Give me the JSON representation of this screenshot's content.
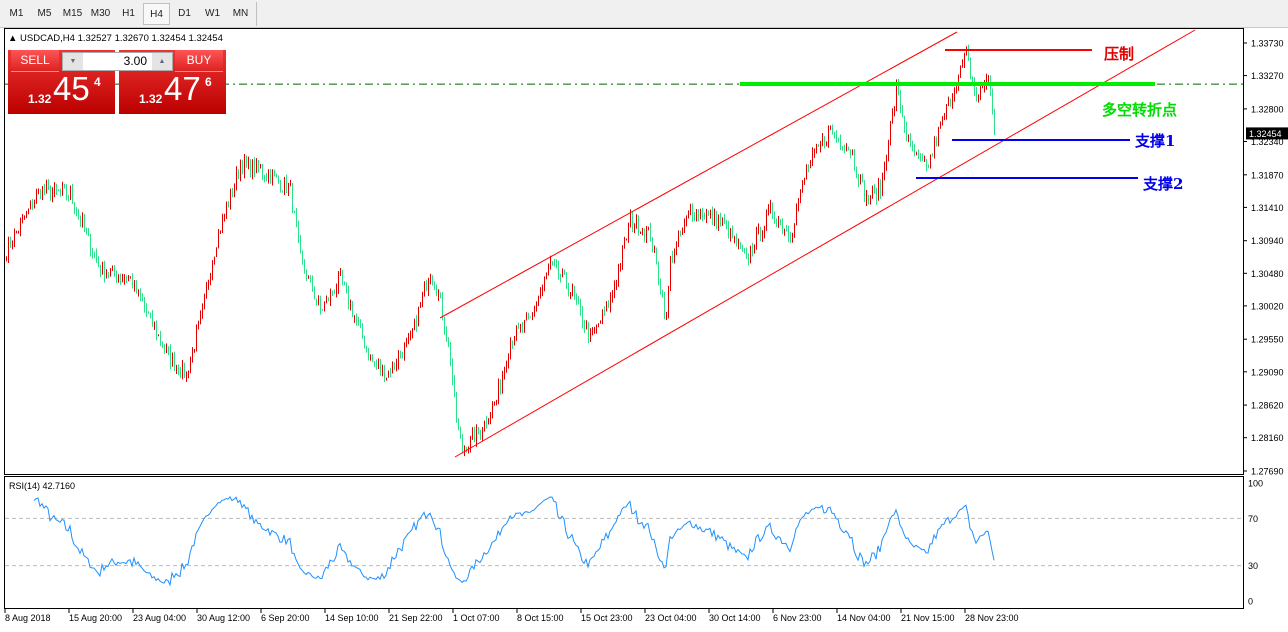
{
  "toolbar": {
    "timeframes": [
      "M1",
      "M5",
      "M15",
      "M30",
      "H1",
      "H4",
      "D1",
      "W1",
      "MN"
    ],
    "selected": "H4"
  },
  "chart": {
    "header": "USDCAD,H4  1.32527 1.32670 1.32454 1.32454",
    "current_price": "1.32454",
    "colors": {
      "bull": "#e00000",
      "bear": "#2ee08a",
      "channel": "#ff0000",
      "pivot": "#00ee00",
      "support": "#0000ee",
      "bid_line": "#006400",
      "rsi": "#1e90ff"
    }
  },
  "trade_panel": {
    "sell_label": "SELL",
    "buy_label": "BUY",
    "quantity": "3.00",
    "sell_prefix": "1.32",
    "sell_big": "45",
    "sell_sup": "4",
    "buy_prefix": "1.32",
    "buy_big": "47",
    "buy_sup": "6"
  },
  "annotations": {
    "resistance": "压制",
    "pivot": "多空转折点",
    "support1": "支撑1",
    "support2": "支撑2"
  },
  "price_axis": [
    "1.33730",
    "1.33270",
    "1.32800",
    "1.32340",
    "1.31870",
    "1.31410",
    "1.30940",
    "1.30480",
    "1.30020",
    "1.29550",
    "1.29090",
    "1.28620",
    "1.28160",
    "1.27690"
  ],
  "time_axis": [
    "8 Aug 2018",
    "15 Aug 20:00",
    "23 Aug 04:00",
    "30 Aug 12:00",
    "6 Sep 20:00",
    "14 Sep 10:00",
    "21 Sep 22:00",
    "1 Oct 07:00",
    "8 Oct 15:00",
    "15 Oct 23:00",
    "23 Oct 04:00",
    "30 Oct 14:00",
    "6 Nov 23:00",
    "14 Nov 04:00",
    "21 Nov 15:00",
    "28 Nov 23:00"
  ],
  "rsi": {
    "label": "RSI(14) 42.7160",
    "axis": [
      "100",
      "70",
      "30",
      "0"
    ],
    "levels": [
      70,
      30
    ]
  },
  "chart_data": {
    "type": "bar",
    "symbol": "USDCAD",
    "timeframe": "H4",
    "ylim": [
      1.2769,
      1.3373
    ],
    "approx_close_path": [
      [
        0,
        1.3081
      ],
      [
        17,
        1.3166
      ],
      [
        32,
        1.3159
      ],
      [
        47,
        1.3053
      ],
      [
        62,
        1.3039
      ],
      [
        82,
        1.2926
      ],
      [
        90,
        1.2905
      ],
      [
        97,
        1.2982
      ],
      [
        105,
        1.3095
      ],
      [
        117,
        1.3201
      ],
      [
        127,
        1.3194
      ],
      [
        142,
        1.3166
      ],
      [
        147,
        1.3067
      ],
      [
        157,
        1.2996
      ],
      [
        167,
        1.3039
      ],
      [
        182,
        1.2926
      ],
      [
        190,
        1.2905
      ],
      [
        202,
        1.2954
      ],
      [
        212,
        1.3053
      ],
      [
        217,
        1.301
      ],
      [
        222,
        1.2926
      ],
      [
        225,
        1.2841
      ],
      [
        228,
        1.2799
      ],
      [
        237,
        1.2827
      ],
      [
        245,
        1.2869
      ],
      [
        252,
        1.2954
      ],
      [
        262,
        1.2982
      ],
      [
        272,
        1.306
      ],
      [
        282,
        1.3025
      ],
      [
        292,
        1.2954
      ],
      [
        302,
        1.301
      ],
      [
        312,
        1.3123
      ],
      [
        322,
        1.3102
      ],
      [
        330,
        1.2982
      ],
      [
        332,
        1.3067
      ],
      [
        342,
        1.3137
      ],
      [
        357,
        1.3123
      ],
      [
        370,
        1.3067
      ],
      [
        382,
        1.3137
      ],
      [
        392,
        1.3102
      ],
      [
        400,
        1.3194
      ],
      [
        412,
        1.325
      ],
      [
        422,
        1.3222
      ],
      [
        430,
        1.3152
      ],
      [
        437,
        1.3166
      ],
      [
        445,
        1.3307
      ],
      [
        452,
        1.3222
      ],
      [
        460,
        1.3194
      ],
      [
        470,
        1.3279
      ],
      [
        480,
        1.3356
      ],
      [
        485,
        1.3293
      ],
      [
        491,
        1.3328
      ],
      [
        494,
        1.32454
      ]
    ]
  }
}
